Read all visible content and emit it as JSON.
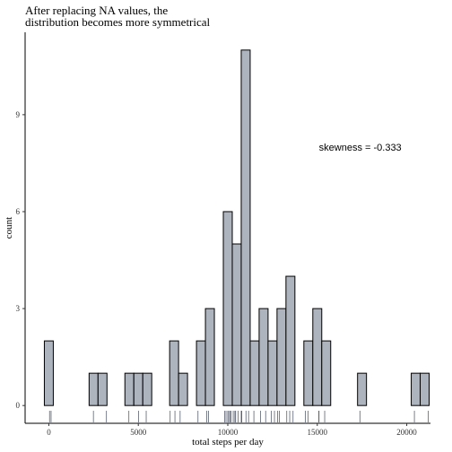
{
  "chart_data": {
    "type": "histogram",
    "title": [
      "After replacing NA values, the",
      "distribution becomes more symmetrical"
    ],
    "x_label": "total steps per day",
    "y_label": "count",
    "bins": [
      -250,
      250,
      750,
      1250,
      1750,
      2250,
      2750,
      3250,
      3750,
      4250,
      4750,
      5250,
      5750,
      6250,
      6750,
      7250,
      7750,
      8250,
      8750,
      9250,
      9750,
      10250,
      10750,
      11250,
      11750,
      12250,
      12750,
      13250,
      13750,
      14250,
      14750,
      15250,
      15750,
      16250,
      16750,
      17250,
      17750,
      18250,
      18750,
      19250,
      19750,
      20250,
      20750,
      21250
    ],
    "counts": [
      2,
      0,
      0,
      0,
      0,
      1,
      1,
      0,
      0,
      1,
      1,
      1,
      0,
      0,
      2,
      1,
      0,
      2,
      3,
      0,
      6,
      5,
      11,
      2,
      3,
      2,
      3,
      4,
      0,
      2,
      3,
      2,
      0,
      0,
      0,
      1,
      0,
      0,
      0,
      0,
      0,
      1,
      1
    ],
    "rug": [
      41,
      126,
      2492,
      3219,
      4472,
      5018,
      5441,
      6778,
      7047,
      7336,
      8334,
      8821,
      8918,
      9819,
      9900,
      10000,
      10056,
      10139,
      10183,
      10304,
      10395,
      10439,
      10571,
      10766,
      10766,
      10766,
      10766,
      10766,
      10766,
      10766,
      10766,
      11015,
      11162,
      11458,
      11829,
      12116,
      12426,
      12608,
      12787,
      12883,
      13294,
      13460,
      13646,
      14339,
      14478,
      15084,
      15098,
      15414,
      17382,
      20427,
      21194
    ],
    "color": "#adb4be",
    "annotation": {
      "text": "skewness =  -0.333",
      "x": 17400,
      "y": 8
    },
    "xlim": [
      -1325,
      21325
    ],
    "xticks": [
      0,
      5000,
      10000,
      15000,
      20000
    ],
    "ylim": [
      -0.55,
      11.55
    ],
    "yticks": [
      0,
      3,
      6,
      9
    ]
  }
}
